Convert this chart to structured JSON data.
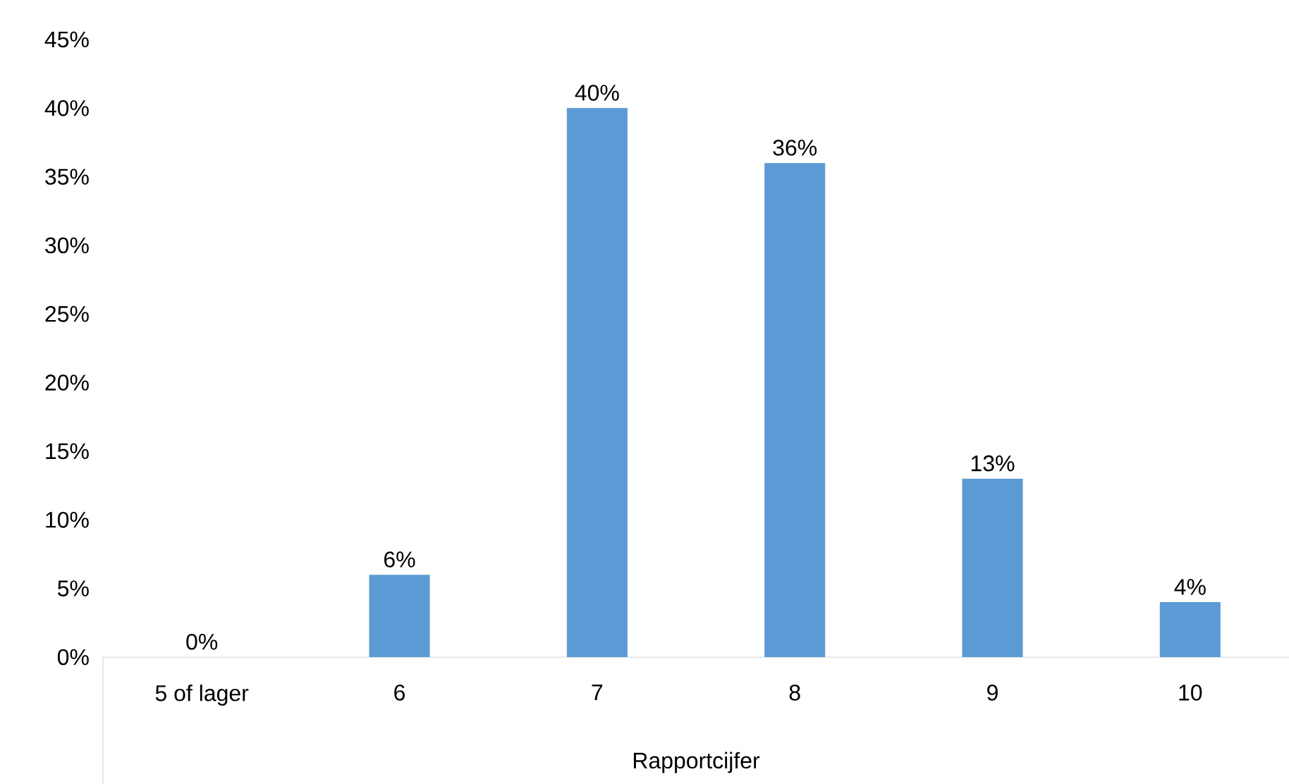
{
  "chart_data": {
    "type": "bar",
    "xlabel": "Rapportcijfer",
    "categories": [
      "5 of lager",
      "6",
      "7",
      "8",
      "9",
      "10"
    ],
    "values": [
      0,
      6,
      40,
      36,
      13,
      4
    ],
    "value_labels": [
      "0%",
      "6%",
      "40%",
      "36%",
      "13%",
      "4%"
    ],
    "color": "#5b9bd5",
    "ylim": [
      0,
      45
    ],
    "yticks": [
      {
        "value": 0,
        "label": "0%"
      },
      {
        "value": 5,
        "label": "5%"
      },
      {
        "value": 10,
        "label": "10%"
      },
      {
        "value": 15,
        "label": "15%"
      },
      {
        "value": 20,
        "label": "20%"
      },
      {
        "value": 25,
        "label": "25%"
      },
      {
        "value": 30,
        "label": "30%"
      },
      {
        "value": 35,
        "label": "35%"
      },
      {
        "value": 40,
        "label": "40%"
      },
      {
        "value": 45,
        "label": "45%"
      }
    ]
  }
}
